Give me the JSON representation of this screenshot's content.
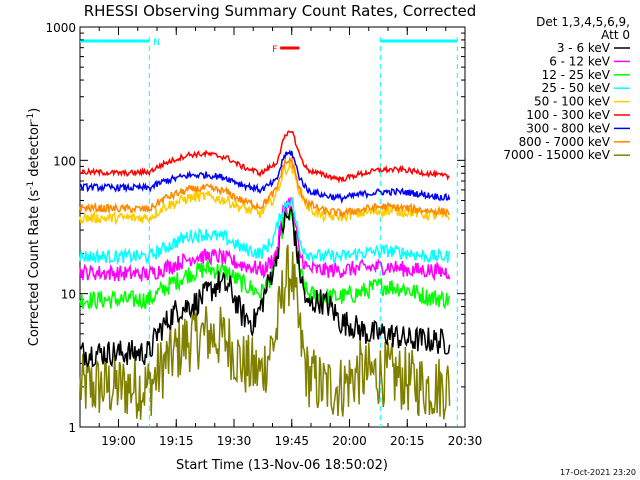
{
  "chart_data": {
    "type": "line",
    "title": "RHESSI Observing Summary Count Rates, Corrected",
    "xlabel": "Start Time (13-Nov-06 18:50:02)",
    "ylabel": "Corrected Count Rate (s",
    "ylabel_sup1": "-1",
    "ylabel_mid": " detector",
    "ylabel_end": ")",
    "y_scale": "log",
    "ylim": [
      1,
      1000
    ],
    "y_ticks": [
      "1",
      "10",
      "100",
      "1000"
    ],
    "xlim": [
      "18:50",
      "20:30"
    ],
    "x_ticks": [
      "19:00",
      "19:15",
      "19:30",
      "19:45",
      "20:00",
      "20:15",
      "20:30"
    ],
    "legend_header": [
      "Det 1,3,4,5,6,9,",
      "Att 0"
    ],
    "legend_placement": "right",
    "flags": [
      {
        "label": "N",
        "color": "#00ffff",
        "from": "18:50",
        "to": "19:08"
      },
      {
        "label": "",
        "color": "#00ffff",
        "from": "20:08",
        "to": "20:28"
      },
      {
        "label": "F",
        "color": "#ff0000",
        "from": "19:42",
        "to": "19:47"
      }
    ],
    "night_boundaries": [
      "19:08",
      "20:08",
      "20:28"
    ],
    "series": [
      {
        "name": "3 - 6 keV",
        "color": "#000000",
        "knots": [
          [
            0,
            3.6
          ],
          [
            18,
            3.6
          ],
          [
            20,
            5
          ],
          [
            25,
            7.5
          ],
          [
            30,
            8.5
          ],
          [
            33,
            10
          ],
          [
            36,
            12
          ],
          [
            39,
            11
          ],
          [
            42,
            7
          ],
          [
            45,
            6
          ],
          [
            47,
            8
          ],
          [
            50,
            15
          ],
          [
            53,
            35
          ],
          [
            55,
            40
          ],
          [
            57,
            15
          ],
          [
            59,
            8
          ],
          [
            62,
            9
          ],
          [
            65,
            8
          ],
          [
            68,
            6
          ],
          [
            70,
            6
          ],
          [
            72,
            5.5
          ],
          [
            75,
            5
          ],
          [
            80,
            5
          ],
          [
            85,
            4.5
          ],
          [
            90,
            4.5
          ],
          [
            96,
            4.3
          ]
        ],
        "noise": 0.1
      },
      {
        "name": "6 - 12 keV",
        "color": "#ff00ff",
        "knots": [
          [
            0,
            14.5
          ],
          [
            18,
            14
          ],
          [
            22,
            15.5
          ],
          [
            30,
            19
          ],
          [
            36,
            19
          ],
          [
            42,
            16.5
          ],
          [
            48,
            15
          ],
          [
            51,
            20
          ],
          [
            53,
            45
          ],
          [
            55,
            50
          ],
          [
            57,
            20
          ],
          [
            59,
            15.5
          ],
          [
            62,
            15
          ],
          [
            68,
            15
          ],
          [
            72,
            15.5
          ],
          [
            80,
            16
          ],
          [
            86,
            15
          ],
          [
            90,
            15
          ],
          [
            96,
            14.5
          ]
        ],
        "noise": 0.06
      },
      {
        "name": "12 - 25 keV",
        "color": "#00ff00",
        "knots": [
          [
            0,
            9
          ],
          [
            18,
            9
          ],
          [
            22,
            11
          ],
          [
            28,
            14
          ],
          [
            33,
            15.5
          ],
          [
            38,
            14.5
          ],
          [
            42,
            12
          ],
          [
            47,
            10
          ],
          [
            50,
            14
          ],
          [
            53,
            35
          ],
          [
            55,
            40
          ],
          [
            57,
            15
          ],
          [
            59,
            10
          ],
          [
            63,
            9.5
          ],
          [
            68,
            9.5
          ],
          [
            72,
            10
          ],
          [
            78,
            11.5
          ],
          [
            84,
            11
          ],
          [
            90,
            9.5
          ],
          [
            96,
            9
          ]
        ],
        "noise": 0.07
      },
      {
        "name": "25 - 50 keV",
        "color": "#00ffff",
        "knots": [
          [
            0,
            19
          ],
          [
            18,
            19
          ],
          [
            22,
            22
          ],
          [
            28,
            27
          ],
          [
            33,
            28
          ],
          [
            38,
            26
          ],
          [
            42,
            22
          ],
          [
            47,
            20
          ],
          [
            50,
            25
          ],
          [
            53,
            45
          ],
          [
            55,
            52
          ],
          [
            57,
            25
          ],
          [
            59,
            20
          ],
          [
            63,
            19
          ],
          [
            68,
            19
          ],
          [
            72,
            20
          ],
          [
            80,
            21
          ],
          [
            86,
            20
          ],
          [
            90,
            19
          ],
          [
            96,
            19
          ]
        ],
        "noise": 0.05
      },
      {
        "name": "50 - 100 keV",
        "color": "#ffcc00",
        "knots": [
          [
            0,
            37
          ],
          [
            18,
            37
          ],
          [
            22,
            45
          ],
          [
            28,
            52
          ],
          [
            33,
            54
          ],
          [
            38,
            50
          ],
          [
            42,
            44
          ],
          [
            47,
            40
          ],
          [
            51,
            55
          ],
          [
            53,
            85
          ],
          [
            55,
            90
          ],
          [
            57,
            60
          ],
          [
            59,
            45
          ],
          [
            63,
            38
          ],
          [
            68,
            38
          ],
          [
            72,
            40
          ],
          [
            80,
            42
          ],
          [
            86,
            41
          ],
          [
            90,
            39
          ],
          [
            96,
            38
          ]
        ],
        "noise": 0.04
      },
      {
        "name": "100 - 300 keV",
        "color": "#ff0000",
        "knots": [
          [
            0,
            82
          ],
          [
            12,
            80
          ],
          [
            18,
            82
          ],
          [
            22,
            95
          ],
          [
            28,
            110
          ],
          [
            33,
            112
          ],
          [
            38,
            105
          ],
          [
            42,
            90
          ],
          [
            47,
            80
          ],
          [
            51,
            95
          ],
          [
            53,
            145
          ],
          [
            55,
            170
          ],
          [
            57,
            110
          ],
          [
            59,
            85
          ],
          [
            63,
            78
          ],
          [
            68,
            72
          ],
          [
            72,
            78
          ],
          [
            78,
            85
          ],
          [
            84,
            85
          ],
          [
            90,
            80
          ],
          [
            96,
            75
          ]
        ],
        "noise": 0.02
      },
      {
        "name": "300 - 800 keV",
        "color": "#0000ff",
        "knots": [
          [
            0,
            63
          ],
          [
            18,
            62
          ],
          [
            22,
            70
          ],
          [
            28,
            77
          ],
          [
            33,
            78
          ],
          [
            38,
            74
          ],
          [
            42,
            66
          ],
          [
            47,
            60
          ],
          [
            51,
            70
          ],
          [
            53,
            108
          ],
          [
            55,
            115
          ],
          [
            57,
            75
          ],
          [
            59,
            60
          ],
          [
            63,
            55
          ],
          [
            68,
            52
          ],
          [
            72,
            55
          ],
          [
            78,
            58
          ],
          [
            84,
            58
          ],
          [
            90,
            55
          ],
          [
            96,
            52
          ]
        ],
        "noise": 0.025
      },
      {
        "name": "800 - 7000 keV",
        "color": "#ff8800",
        "knots": [
          [
            0,
            44
          ],
          [
            18,
            43
          ],
          [
            22,
            52
          ],
          [
            28,
            60
          ],
          [
            33,
            62
          ],
          [
            38,
            58
          ],
          [
            42,
            50
          ],
          [
            47,
            45
          ],
          [
            51,
            60
          ],
          [
            53,
            95
          ],
          [
            55,
            100
          ],
          [
            57,
            60
          ],
          [
            59,
            48
          ],
          [
            63,
            42
          ],
          [
            68,
            40
          ],
          [
            72,
            42
          ],
          [
            78,
            45
          ],
          [
            84,
            44
          ],
          [
            90,
            42
          ],
          [
            96,
            41
          ]
        ],
        "noise": 0.03
      },
      {
        "name": "7000 - 15000 keV",
        "color": "#808000",
        "knots": [
          [
            0,
            2
          ],
          [
            18,
            2
          ],
          [
            22,
            3
          ],
          [
            28,
            4.5
          ],
          [
            33,
            5
          ],
          [
            38,
            4.5
          ],
          [
            42,
            3
          ],
          [
            47,
            2.5
          ],
          [
            51,
            5
          ],
          [
            53,
            12
          ],
          [
            55,
            15
          ],
          [
            57,
            5
          ],
          [
            59,
            2.5
          ],
          [
            63,
            2
          ],
          [
            68,
            2
          ],
          [
            72,
            2.5
          ],
          [
            80,
            2.5
          ],
          [
            90,
            2
          ],
          [
            96,
            2
          ]
        ],
        "noise": 0.25
      }
    ]
  },
  "footer": {
    "timestamp": "17-Oct-2021 23:20"
  }
}
